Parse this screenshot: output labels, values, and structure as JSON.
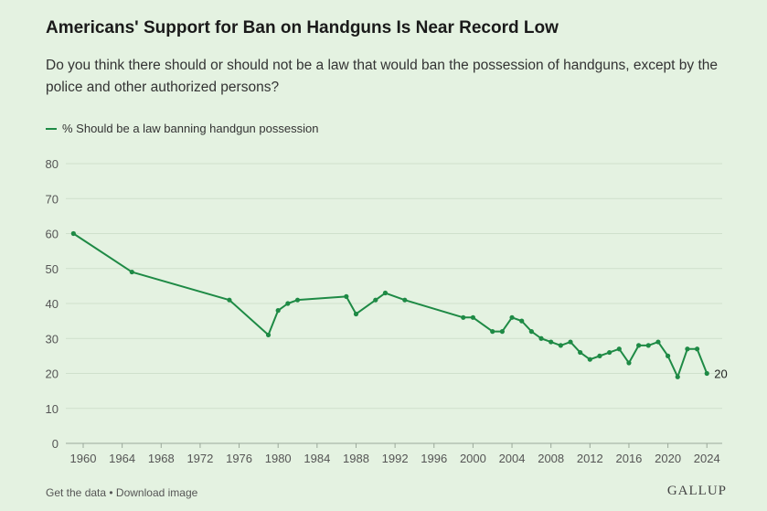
{
  "title": "Americans' Support for Ban on Handguns Is Near Record Low",
  "subtitle": "Do you think there should or should not be a law that would ban the possession of handguns, except by the police and other authorized persons?",
  "footer": {
    "get_data": "Get the data",
    "separator": " • ",
    "download": "Download image"
  },
  "logo": "GALLUP",
  "chart_data": {
    "type": "line",
    "title": "Americans' Support for Ban on Handguns Is Near Record Low",
    "xlabel": "",
    "ylabel": "",
    "ylim": [
      0,
      80
    ],
    "xlim": [
      1958,
      2025
    ],
    "grid": true,
    "legend_placement": "top-left",
    "color": "#1e8a45",
    "yticks": [
      "0",
      "10",
      "20",
      "30",
      "40",
      "50",
      "60",
      "70",
      "80"
    ],
    "xticks": [
      "1960",
      "1964",
      "1968",
      "1972",
      "1976",
      "1980",
      "1984",
      "1988",
      "1992",
      "1996",
      "2000",
      "2004",
      "2008",
      "2012",
      "2016",
      "2020",
      "2024"
    ],
    "end_label": "20",
    "series": [
      {
        "name": "% Should be a law banning handgun possession",
        "x": [
          1959,
          1965,
          1975,
          1979,
          1980,
          1981,
          1982,
          1987,
          1988,
          1990,
          1991,
          1993,
          1999,
          2000,
          2002,
          2003,
          2004,
          2005,
          2006,
          2007,
          2008,
          2009,
          2010,
          2011,
          2012,
          2013,
          2014,
          2015,
          2016,
          2017,
          2018,
          2019,
          2020,
          2021,
          2022,
          2023,
          2024
        ],
        "values": [
          60,
          49,
          41,
          31,
          38,
          40,
          41,
          42,
          37,
          41,
          43,
          41,
          36,
          36,
          32,
          32,
          36,
          35,
          32,
          30,
          29,
          28,
          29,
          26,
          24,
          25,
          26,
          27,
          23,
          28,
          28,
          29,
          25,
          19,
          27,
          27,
          20
        ]
      }
    ]
  }
}
